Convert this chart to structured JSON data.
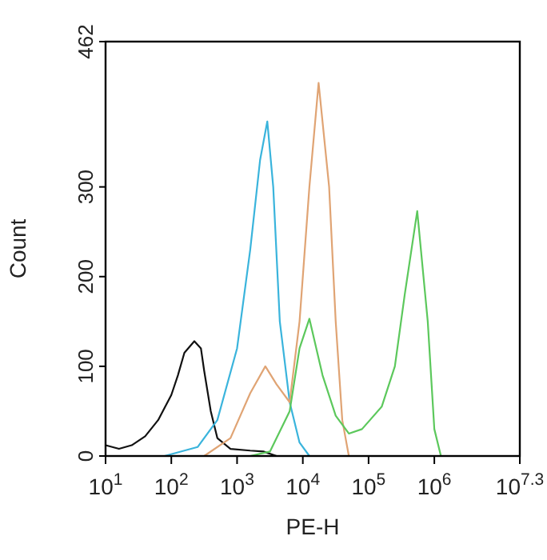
{
  "chart_data": {
    "type": "line",
    "xlabel": "PE-H",
    "ylabel": "Count",
    "log": "x",
    "grid": false,
    "marker": "none",
    "line_style": "solid",
    "xlim": [
      10,
      19952623
    ],
    "ylim": [
      0,
      462
    ],
    "xticks": [
      {
        "value": 10,
        "label": "10$^{1}$"
      },
      {
        "value": 100,
        "label": "10$^{2}$"
      },
      {
        "value": 1000,
        "label": "10$^{3}$"
      },
      {
        "value": 10000,
        "label": "10$^{4}$"
      },
      {
        "value": 100000,
        "label": "10$^{5}$"
      },
      {
        "value": 1000000,
        "label": "10$^{6}$"
      },
      {
        "value": 19952623,
        "label": "10$^{7.3}$"
      }
    ],
    "yticks": [
      0,
      100,
      200,
      300,
      462
    ],
    "series": [
      {
        "color": "#111111",
        "x": [
          10,
          16,
          25,
          40,
          63,
          100,
          126,
          158,
          224,
          282,
          316,
          398,
          501,
          794,
          1585,
          2512,
          3981
        ],
        "values": [
          12,
          8,
          12,
          22,
          40,
          68,
          90,
          115,
          128,
          120,
          95,
          50,
          20,
          8,
          6,
          5,
          0
        ]
      },
      {
        "color": "#3ab4dc",
        "x": [
          79,
          251,
          501,
          1000,
          1585,
          2239,
          2884,
          3548,
          4467,
          6310,
          8913,
          12589
        ],
        "values": [
          0,
          10,
          40,
          120,
          230,
          330,
          373,
          300,
          150,
          60,
          15,
          0
        ]
      },
      {
        "color": "#e0a474",
        "x": [
          316,
          794,
          1585,
          2692,
          3981,
          6310,
          8913,
          12589,
          17378,
          25119,
          31623,
          39811,
          50119
        ],
        "values": [
          0,
          20,
          70,
          100,
          80,
          60,
          150,
          300,
          416,
          300,
          150,
          40,
          0
        ]
      },
      {
        "color": "#5cc85c",
        "x": [
          1585,
          3162,
          6310,
          8913,
          12589,
          19953,
          31623,
          50119,
          79433,
          158489,
          251189,
          354813,
          549541,
          794328,
          1000000,
          1258925
        ],
        "values": [
          0,
          5,
          50,
          120,
          153,
          90,
          45,
          25,
          30,
          55,
          100,
          180,
          273,
          150,
          30,
          0
        ]
      }
    ]
  }
}
